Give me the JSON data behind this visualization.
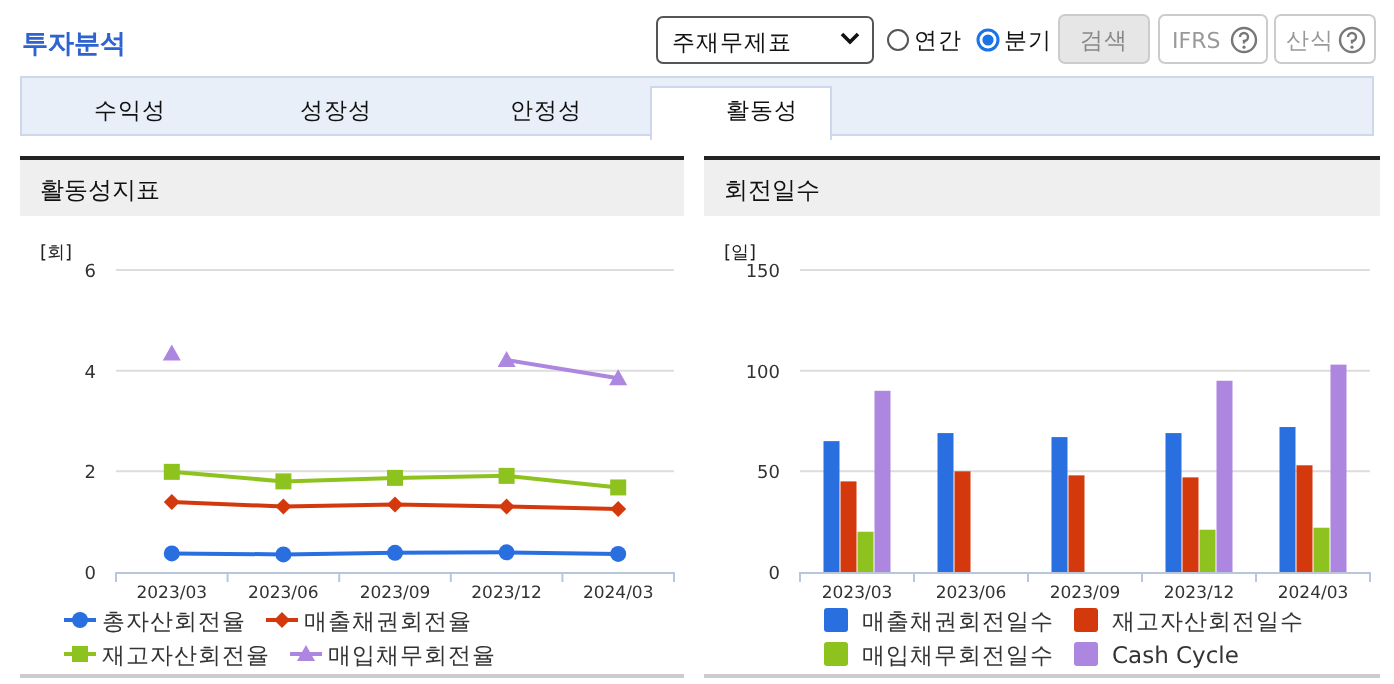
{
  "chart_data": [
    {
      "type": "other",
      "title": "투자분석",
      "annotations": [
        "주재무제표",
        "연간",
        "분기",
        "검색",
        "IFRS",
        "산식",
        "수익성",
        "성장성",
        "안정성",
        "활동성"
      ]
    },
    {
      "type": "line",
      "title": "활동성지표",
      "ylabel": "[회]",
      "categories": [
        "2023/03",
        "2023/06",
        "2023/09",
        "2023/12",
        "2024/03"
      ],
      "ylim": [
        0,
        6
      ],
      "yticks": [
        0,
        2,
        4,
        6
      ],
      "grid": "y",
      "legend": "bottom",
      "line_style": "solid",
      "series": [
        {
          "name": "총자산회전율",
          "color": "#2a6fe0",
          "marker": "circle",
          "values": [
            0.37,
            0.35,
            0.38,
            0.39,
            0.36
          ]
        },
        {
          "name": "매출채권회전율",
          "color": "#d4380d",
          "marker": "diamond",
          "values": [
            1.39,
            1.3,
            1.34,
            1.3,
            1.25
          ]
        },
        {
          "name": "재고자산회전율",
          "color": "#8dc21f",
          "marker": "square",
          "values": [
            1.99,
            1.8,
            1.87,
            1.91,
            1.68
          ]
        },
        {
          "name": "매입채무회전율",
          "color": "#ad86e0",
          "marker": "triangle",
          "values": [
            4.34,
            null,
            null,
            4.21,
            3.85
          ]
        }
      ]
    },
    {
      "type": "bar",
      "title": "회전일수",
      "ylabel": "[일]",
      "categories": [
        "2023/03",
        "2023/06",
        "2023/09",
        "2023/12",
        "2024/03"
      ],
      "ylim": [
        0,
        150
      ],
      "yticks": [
        0,
        50,
        100,
        150
      ],
      "grid": "y",
      "legend": "bottom",
      "series": [
        {
          "name": "매출채권회전일수",
          "color": "#2a6fe0",
          "values": [
            65,
            69,
            67,
            69,
            72
          ]
        },
        {
          "name": "재고자산회전일수",
          "color": "#d4380d",
          "values": [
            45,
            50,
            48,
            47,
            53
          ]
        },
        {
          "name": "매입채무회전일수",
          "color": "#8dc21f",
          "values": [
            20,
            null,
            null,
            21,
            22
          ]
        },
        {
          "name": "Cash Cycle",
          "color": "#ad86e0",
          "values": [
            90,
            null,
            null,
            95,
            103
          ]
        }
      ]
    }
  ]
}
